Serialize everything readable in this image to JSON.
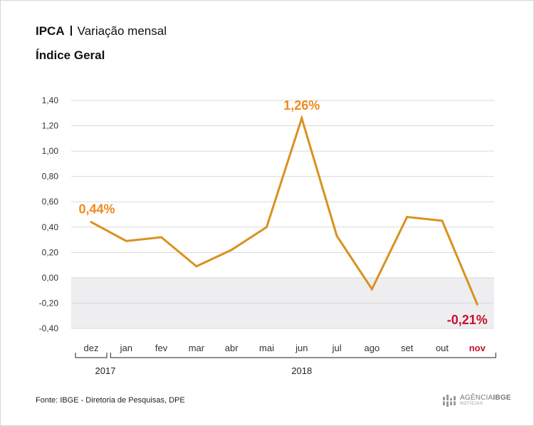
{
  "header": {
    "title": "IPCA",
    "title_detail": "Variação mensal",
    "subtitle": "Índice Geral"
  },
  "chart_data": {
    "type": "line",
    "title": "IPCA | Variação mensal",
    "subtitle": "Índice Geral",
    "categories": [
      "dez",
      "jan",
      "fev",
      "mar",
      "abr",
      "mai",
      "jun",
      "jul",
      "ago",
      "set",
      "out",
      "nov"
    ],
    "values": [
      0.44,
      0.29,
      0.32,
      0.09,
      0.22,
      0.4,
      1.26,
      0.33,
      -0.09,
      0.48,
      0.45,
      -0.21
    ],
    "ylim": [
      -0.4,
      1.4
    ],
    "yticks": [
      "1,40",
      "1,20",
      "1,00",
      "0,80",
      "0,60",
      "0,40",
      "0,20",
      "0,00",
      "-0,20",
      "-0,40"
    ],
    "ytick_values": [
      1.4,
      1.2,
      1.0,
      0.8,
      0.6,
      0.4,
      0.2,
      0.0,
      -0.2,
      -0.4
    ],
    "year_groups": [
      {
        "label": "2017",
        "from": 0,
        "to": 0
      },
      {
        "label": "2018",
        "from": 1,
        "to": 11
      }
    ],
    "annotations": [
      {
        "index": 0,
        "label": "0,44%",
        "color": "#f08a1c"
      },
      {
        "index": 6,
        "label": "1,26%",
        "color": "#f08a1c"
      },
      {
        "index": 11,
        "label": "-0,21%",
        "color": "#c8102e"
      }
    ],
    "highlight_category": {
      "index": 11,
      "color": "#c8102e"
    },
    "line_color": "#d9911e",
    "negative_band_color": "#eeeef0",
    "grid": true
  },
  "footer": {
    "source": "Fonte: IBGE - Diretoria de Pesquisas, DPE",
    "logo_text_a": "AGÊNCIA",
    "logo_text_b": "IBGE",
    "logo_subtext": "NOTÍCIAS"
  }
}
